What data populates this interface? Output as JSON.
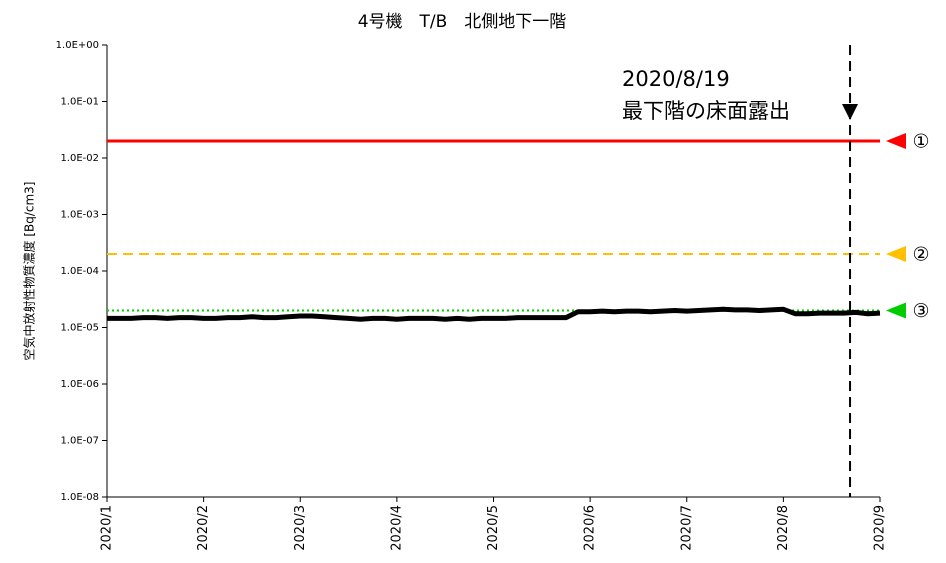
{
  "chart_data": {
    "type": "line",
    "title": "4号機　T/B　北側地下一階",
    "y_label": "空気中放射性物質濃度 [Bq/cm3]",
    "log_y": true,
    "ylim": [
      1e-08,
      1
    ],
    "yticks": [
      {
        "value": 1,
        "label": "1.0E+00"
      },
      {
        "value": 0.1,
        "label": "1.0E-01"
      },
      {
        "value": 0.01,
        "label": "1.0E-02"
      },
      {
        "value": 0.001,
        "label": "1.0E-03"
      },
      {
        "value": 0.0001,
        "label": "1.0E-04"
      },
      {
        "value": 1e-05,
        "label": "1.0E-05"
      },
      {
        "value": 1e-06,
        "label": "1.0E-06"
      },
      {
        "value": 1e-07,
        "label": "1.0E-07"
      },
      {
        "value": 1e-08,
        "label": "1.0E-08"
      }
    ],
    "xlim": [
      1,
      9
    ],
    "xticks": [
      {
        "value": 1,
        "label": "2020/1"
      },
      {
        "value": 2,
        "label": "2020/2"
      },
      {
        "value": 3,
        "label": "2020/3"
      },
      {
        "value": 4,
        "label": "2020/4"
      },
      {
        "value": 5,
        "label": "2020/5"
      },
      {
        "value": 6,
        "label": "2020/6"
      },
      {
        "value": 7,
        "label": "2020/7"
      },
      {
        "value": 8,
        "label": "2020/8"
      },
      {
        "value": 9,
        "label": "2020/9"
      }
    ],
    "x": [
      1.0,
      1.125,
      1.25,
      1.375,
      1.5,
      1.625,
      1.75,
      1.875,
      2.0,
      2.125,
      2.25,
      2.375,
      2.5,
      2.625,
      2.75,
      2.875,
      3.0,
      3.125,
      3.25,
      3.375,
      3.5,
      3.625,
      3.75,
      3.875,
      4.0,
      4.125,
      4.25,
      4.375,
      4.5,
      4.625,
      4.75,
      4.875,
      5.0,
      5.125,
      5.25,
      5.375,
      5.5,
      5.625,
      5.75,
      5.875,
      6.0,
      6.125,
      6.25,
      6.375,
      6.5,
      6.625,
      6.75,
      6.875,
      7.0,
      7.125,
      7.25,
      7.375,
      7.5,
      7.625,
      7.75,
      7.875,
      8.0,
      8.125,
      8.25,
      8.375,
      8.5,
      8.625,
      8.75,
      8.875,
      9.0
    ],
    "series": [
      {
        "color": "#000000",
        "values": [
          1.45e-05,
          1.45e-05,
          1.45e-05,
          1.5e-05,
          1.5e-05,
          1.45e-05,
          1.5e-05,
          1.5e-05,
          1.45e-05,
          1.45e-05,
          1.5e-05,
          1.5e-05,
          1.55e-05,
          1.5e-05,
          1.5e-05,
          1.55e-05,
          1.6e-05,
          1.6e-05,
          1.55e-05,
          1.5e-05,
          1.45e-05,
          1.4e-05,
          1.45e-05,
          1.45e-05,
          1.4e-05,
          1.45e-05,
          1.45e-05,
          1.45e-05,
          1.4e-05,
          1.45e-05,
          1.4e-05,
          1.45e-05,
          1.45e-05,
          1.45e-05,
          1.5e-05,
          1.5e-05,
          1.5e-05,
          1.5e-05,
          1.5e-05,
          1.9e-05,
          1.9e-05,
          1.95e-05,
          1.9e-05,
          1.95e-05,
          1.95e-05,
          1.9e-05,
          1.95e-05,
          2e-05,
          1.95e-05,
          2e-05,
          2.05e-05,
          2.1e-05,
          2.05e-05,
          2.05e-05,
          2e-05,
          2.05e-05,
          2.1e-05,
          1.75e-05,
          1.75e-05,
          1.8e-05,
          1.8e-05,
          1.8e-05,
          1.85e-05,
          1.75e-05,
          1.8e-05
        ]
      }
    ],
    "reference_lines": [
      {
        "label": "①",
        "value": 0.02,
        "color": "#ff0000",
        "style": "solid"
      },
      {
        "label": "②",
        "value": 0.0002,
        "color": "#ffc000",
        "style": "dashed"
      },
      {
        "label": "③",
        "value": 2e-05,
        "color": "#00cc00",
        "style": "dotted"
      }
    ],
    "vline": {
      "x": 8.69,
      "color": "#000000",
      "style": "dashed"
    },
    "annotation": [
      "2020/8/19",
      "最下階の床面露出"
    ]
  }
}
